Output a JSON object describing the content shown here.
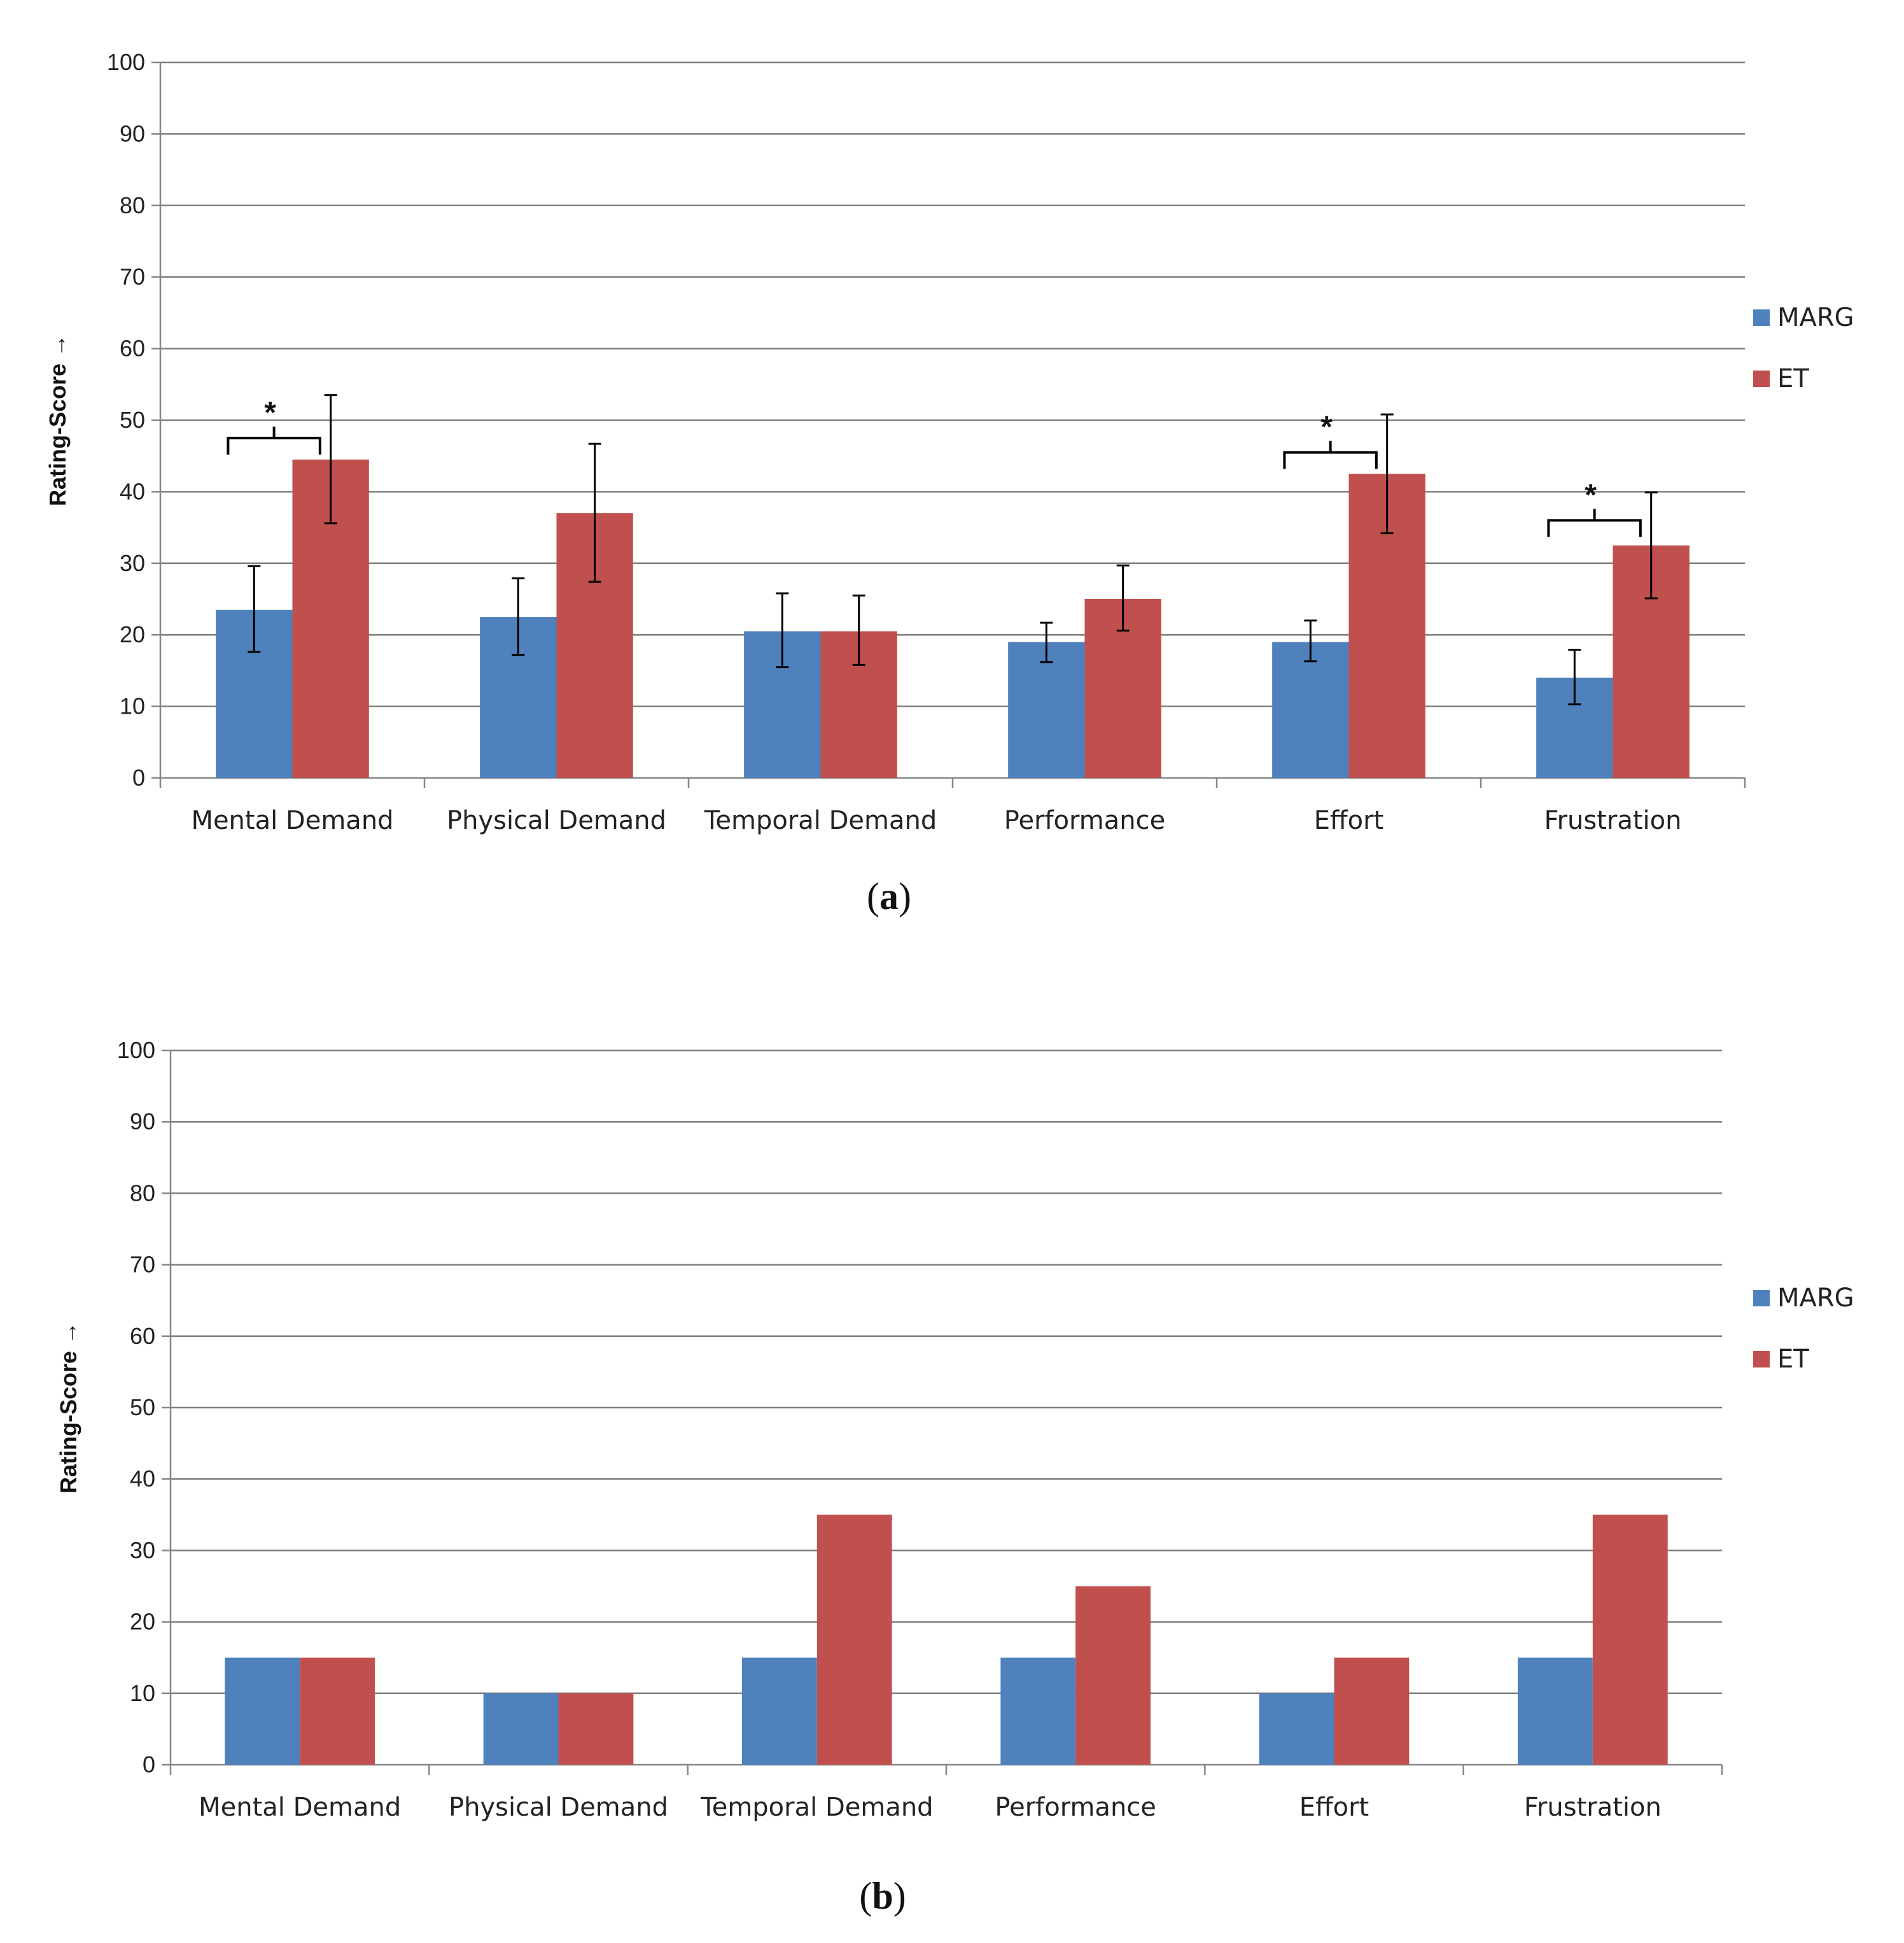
{
  "colors": {
    "marg": "#4f81bd",
    "et": "#c0504d",
    "grid": "#7f7f7f",
    "axis": "#868686",
    "text": "#222222"
  },
  "chart_data": [
    {
      "panel": "a",
      "caption": "(a)",
      "caption_letter": "a",
      "type": "bar",
      "ylabel": "Rating-Score",
      "ylabel_arrow": "→",
      "ylim": [
        0,
        100
      ],
      "yticks": [
        "0",
        "10",
        "20",
        "30",
        "40",
        "50",
        "60",
        "70",
        "80",
        "90",
        "100"
      ],
      "categories": [
        "Mental Demand",
        "Physical Demand",
        "Temporal Demand",
        "Performance",
        "Effort",
        "Frustration"
      ],
      "series": [
        {
          "name": "MARG",
          "values": [
            23.5,
            22.5,
            20.5,
            19,
            19,
            14
          ],
          "error_low": [
            17.6,
            17.2,
            15.5,
            16.2,
            16.3,
            10.3
          ],
          "error_high": [
            29.6,
            27.9,
            25.8,
            21.7,
            22.0,
            17.9
          ]
        },
        {
          "name": "ET",
          "values": [
            44.5,
            37,
            20.5,
            25,
            42.5,
            32.5
          ],
          "error_low": [
            35.6,
            27.4,
            15.8,
            20.6,
            34.2,
            25.1
          ],
          "error_high": [
            53.5,
            46.7,
            25.5,
            29.7,
            50.8,
            39.9
          ]
        }
      ],
      "significance": [
        {
          "category_index": 0,
          "label": "*",
          "level": 47.5
        },
        {
          "category_index": 4,
          "label": "*",
          "level": 45.5
        },
        {
          "category_index": 5,
          "label": "*",
          "level": 36.0
        }
      ],
      "legend": [
        "MARG",
        "ET"
      ],
      "legend_position": "right"
    },
    {
      "panel": "b",
      "caption": "(b)",
      "caption_letter": "b",
      "type": "bar",
      "ylabel": "Rating-Score",
      "ylabel_arrow": "→",
      "ylim": [
        0,
        100
      ],
      "yticks": [
        "0",
        "10",
        "20",
        "30",
        "40",
        "50",
        "60",
        "70",
        "80",
        "90",
        "100"
      ],
      "categories": [
        "Mental Demand",
        "Physical Demand",
        "Temporal Demand",
        "Performance",
        "Effort",
        "Frustration"
      ],
      "series": [
        {
          "name": "MARG",
          "values": [
            15,
            10,
            15,
            15,
            10,
            15
          ]
        },
        {
          "name": "ET",
          "values": [
            15,
            10,
            35,
            25,
            15,
            35
          ]
        }
      ],
      "legend": [
        "MARG",
        "ET"
      ],
      "legend_position": "right"
    }
  ]
}
